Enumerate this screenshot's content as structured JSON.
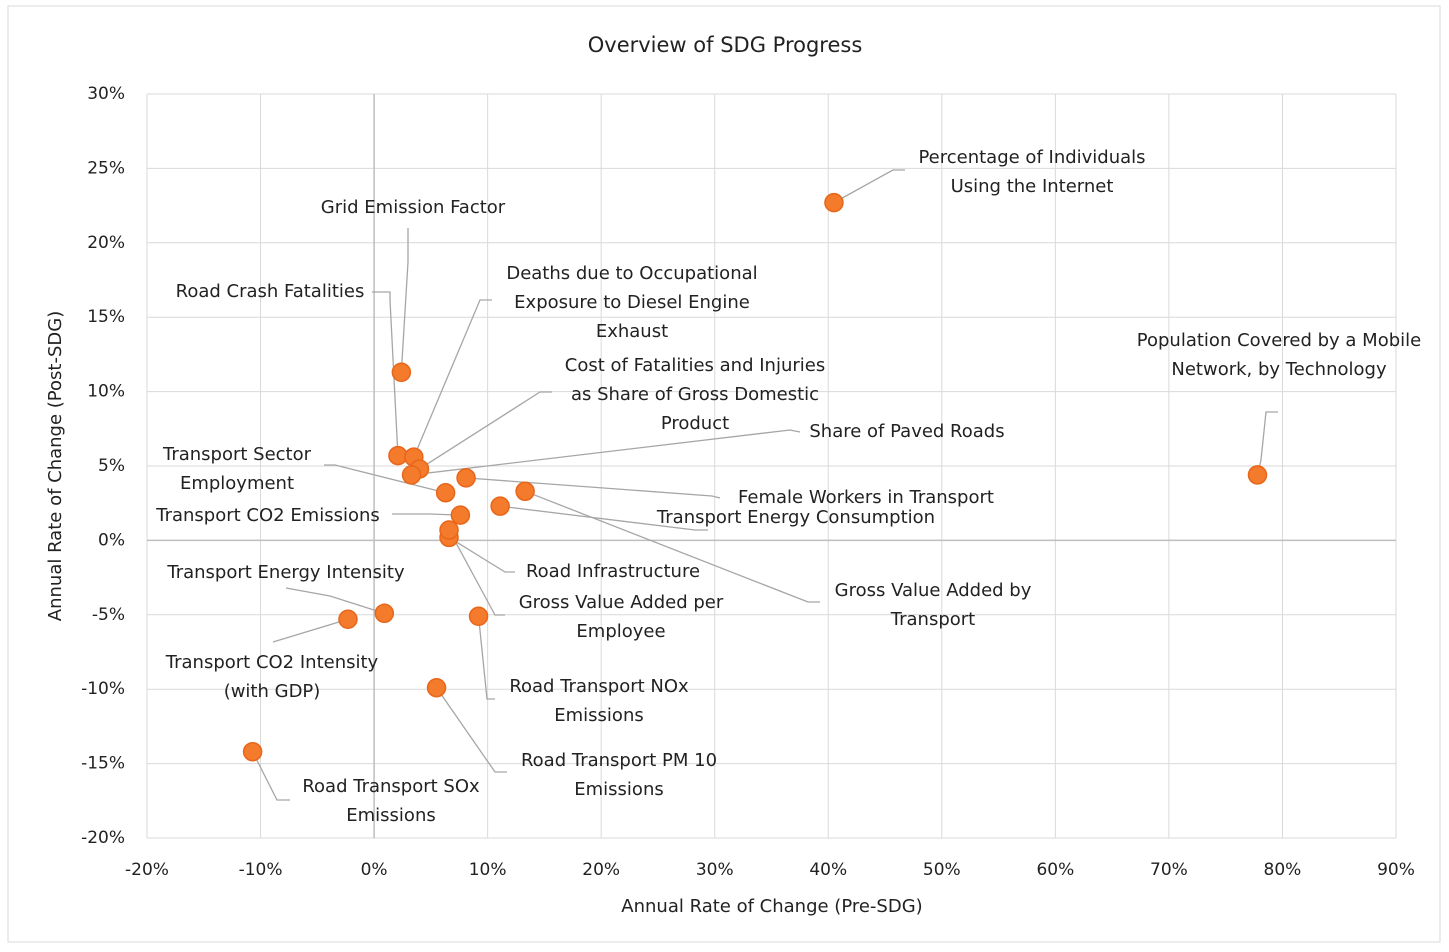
{
  "chart_data": {
    "type": "scatter",
    "title": "Overview of SDG Progress",
    "x_label": "Annual Rate of Change (Pre-SDG)",
    "y_label": "Annual Rate of Change (Post-SDG)",
    "color": "#f47a2c",
    "point_labels": [
      "Grid Emission Factor",
      "Road Crash Fatalities",
      "Deaths due to Occupational Exposure to Diesel Engine Exhaust",
      "Cost of Fatalities and Injuries as Share of Gross Domestic Product",
      "Share of Paved Roads",
      "Transport Sector Employment",
      "Female Workers in Transport",
      "Gross Value Added by Transport",
      "Transport Energy Consumption",
      "Transport CO2 Emissions",
      "Road Infrastructure",
      "Gross Value Added per Employee",
      "Transport Energy Intensity",
      "Transport CO2 Intensity (with GDP)",
      "Road Transport NOx Emissions",
      "Road Transport PM 10 Emissions",
      "Road Transport SOx Emissions",
      "Percentage of Individuals Using the Internet",
      "Population Covered by a Mobile Network, by Technology"
    ],
    "x": [
      2.4,
      2.1,
      3.5,
      4.0,
      3.3,
      6.3,
      8.1,
      13.3,
      11.1,
      7.6,
      6.6,
      6.6,
      0.9,
      -2.3,
      9.2,
      5.5,
      -10.7,
      40.5,
      77.8
    ],
    "values": [
      11.3,
      5.7,
      5.6,
      4.8,
      4.4,
      3.2,
      4.2,
      3.3,
      2.3,
      1.7,
      0.2,
      0.7,
      -4.9,
      -5.3,
      -5.1,
      -9.9,
      -14.2,
      22.7,
      4.4
    ],
    "xlim": [
      -20,
      90
    ],
    "xticks": [
      {
        "value": -20,
        "label": "-20%"
      },
      {
        "value": -10,
        "label": "-10%"
      },
      {
        "value": 0,
        "label": "0%"
      },
      {
        "value": 10,
        "label": "10%"
      },
      {
        "value": 20,
        "label": "20%"
      },
      {
        "value": 30,
        "label": "30%"
      },
      {
        "value": 40,
        "label": "40%"
      },
      {
        "value": 50,
        "label": "50%"
      },
      {
        "value": 60,
        "label": "60%"
      },
      {
        "value": 70,
        "label": "70%"
      },
      {
        "value": 80,
        "label": "80%"
      },
      {
        "value": 90,
        "label": "90%"
      }
    ],
    "ylim": [
      -20,
      30
    ],
    "yticks": [
      {
        "value": -20,
        "label": "-20%"
      },
      {
        "value": -15,
        "label": "-15%"
      },
      {
        "value": -10,
        "label": "-10%"
      },
      {
        "value": -5,
        "label": "-5%"
      },
      {
        "value": 0,
        "label": "0%"
      },
      {
        "value": 5,
        "label": "5%"
      },
      {
        "value": 10,
        "label": "10%"
      },
      {
        "value": 15,
        "label": "15%"
      },
      {
        "value": 20,
        "label": "20%"
      },
      {
        "value": 25,
        "label": "25%"
      },
      {
        "value": 30,
        "label": "30%"
      }
    ],
    "grid": true
  }
}
